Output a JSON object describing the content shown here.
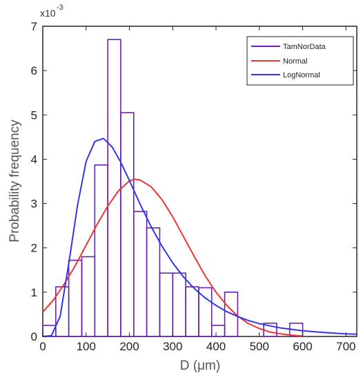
{
  "chart_data": {
    "type": "histogram",
    "title": "",
    "xlabel": "D (μm)",
    "ylabel": "Probability frequency",
    "y_multiplier_label": {
      "base": "x10",
      "exponent": "-3"
    },
    "xlim": [
      0,
      725
    ],
    "ylim": [
      0,
      7
    ],
    "x_ticks": [
      0,
      100,
      200,
      300,
      400,
      500,
      600,
      700
    ],
    "y_ticks": [
      0,
      1,
      2,
      3,
      4,
      5,
      6,
      7
    ],
    "grid": false,
    "legend_position": "top-right",
    "bin_width": 30,
    "bins": [
      {
        "x0": 0,
        "x1": 30,
        "value": 0.25
      },
      {
        "x0": 30,
        "x1": 60,
        "value": 1.12
      },
      {
        "x0": 60,
        "x1": 90,
        "value": 1.72
      },
      {
        "x0": 90,
        "x1": 120,
        "value": 1.8
      },
      {
        "x0": 120,
        "x1": 150,
        "value": 3.87
      },
      {
        "x0": 150,
        "x1": 180,
        "value": 6.7
      },
      {
        "x0": 180,
        "x1": 210,
        "value": 5.05
      },
      {
        "x0": 210,
        "x1": 240,
        "value": 2.82
      },
      {
        "x0": 240,
        "x1": 270,
        "value": 2.45
      },
      {
        "x0": 270,
        "x1": 300,
        "value": 1.43
      },
      {
        "x0": 300,
        "x1": 330,
        "value": 1.43
      },
      {
        "x0": 330,
        "x1": 360,
        "value": 1.12
      },
      {
        "x0": 360,
        "x1": 390,
        "value": 1.1
      },
      {
        "x0": 390,
        "x1": 420,
        "value": 0.25
      },
      {
        "x0": 420,
        "x1": 450,
        "value": 1.0
      },
      {
        "x0": 450,
        "x1": 480,
        "value": 0.0
      },
      {
        "x0": 480,
        "x1": 510,
        "value": 0.0
      },
      {
        "x0": 510,
        "x1": 540,
        "value": 0.3
      },
      {
        "x0": 540,
        "x1": 570,
        "value": 0.0
      },
      {
        "x0": 570,
        "x1": 600,
        "value": 0.3
      }
    ],
    "series": [
      {
        "name": "TamNorData",
        "color": "#6a1fb0",
        "kind": "histogram"
      },
      {
        "name": "Normal",
        "color": "#ee3333",
        "kind": "line",
        "x": [
          0,
          25,
          50,
          75,
          100,
          125,
          150,
          175,
          200,
          212,
          225,
          250,
          275,
          300,
          325,
          350,
          375,
          400,
          425,
          450,
          475,
          500,
          525,
          550,
          575,
          600
        ],
        "y": [
          0.55,
          0.83,
          1.19,
          1.6,
          2.06,
          2.52,
          2.94,
          3.29,
          3.51,
          3.55,
          3.53,
          3.38,
          3.09,
          2.7,
          2.25,
          1.8,
          1.37,
          1.0,
          0.7,
          0.46,
          0.29,
          0.18,
          0.1,
          0.06,
          0.03,
          0.01
        ]
      },
      {
        "name": "LogNormal",
        "color": "#3333ee",
        "kind": "line",
        "x": [
          0,
          20,
          40,
          60,
          80,
          100,
          120,
          140,
          160,
          180,
          200,
          225,
          250,
          275,
          300,
          325,
          350,
          375,
          400,
          425,
          450,
          475,
          500,
          550,
          600,
          650,
          700,
          725
        ],
        "y": [
          0.0,
          0.02,
          0.45,
          1.65,
          2.95,
          3.95,
          4.4,
          4.47,
          4.28,
          3.93,
          3.52,
          2.98,
          2.48,
          2.04,
          1.66,
          1.34,
          1.08,
          0.87,
          0.7,
          0.56,
          0.45,
          0.36,
          0.29,
          0.19,
          0.13,
          0.09,
          0.06,
          0.05
        ]
      }
    ]
  }
}
